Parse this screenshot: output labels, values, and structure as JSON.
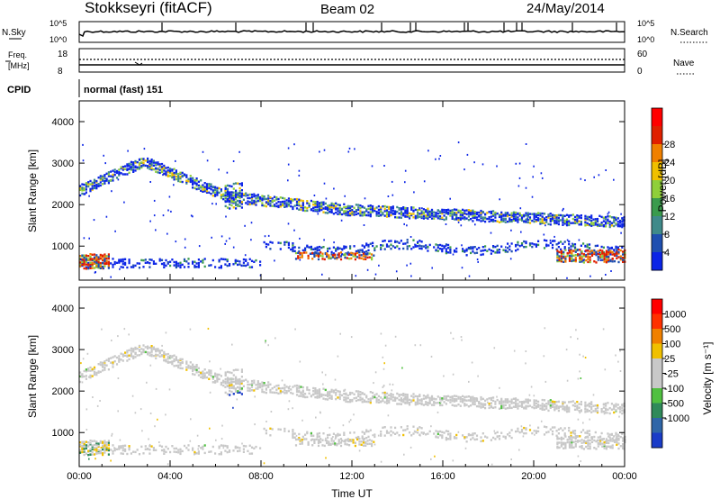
{
  "header": {
    "station": "Stokkseyri (fitACF)",
    "beam": "Beam 02",
    "date": "24/May/2014"
  },
  "left_labels": {
    "nsky": "N.Sky",
    "freq": "Freq.",
    "mhz": "[MHz]",
    "cpid": "CPID"
  },
  "right_labels": {
    "nsearch": "N.Search",
    "nave": "Nave"
  },
  "cpid_text": "normal (fast) 151",
  "chart_data": [
    {
      "type": "line",
      "name": "noise",
      "left_ticks": [
        "10^5",
        "10^0"
      ],
      "right_ticks": [
        "10^5",
        "10^0"
      ]
    },
    {
      "type": "line",
      "name": "freq-nave",
      "left_ticks": [
        "18",
        "8"
      ],
      "right_ticks": [
        "60",
        "0"
      ]
    },
    {
      "type": "heatmap",
      "name": "power",
      "ylabel": "Slant Range [km]",
      "ylim": [
        180,
        4500
      ],
      "yticks": [
        "1000",
        "2000",
        "3000",
        "4000"
      ],
      "colorbar": {
        "label": "Power [dB]",
        "ticks": [
          "4",
          "8",
          "12",
          "16",
          "20",
          "24",
          "28"
        ],
        "colors": [
          "#0b24e6",
          "#1f4fb0",
          "#3f8a8a",
          "#3a9b4d",
          "#8fcf3a",
          "#f0c000",
          "#f08000",
          "#e02000",
          "#ff0000"
        ]
      }
    },
    {
      "type": "heatmap",
      "name": "velocity",
      "ylabel": "Slant Range [km]",
      "ylim": [
        180,
        4500
      ],
      "yticks": [
        "1000",
        "2000",
        "3000",
        "4000"
      ],
      "xlabel": "Time UT",
      "xticks": [
        "00:00",
        "04:00",
        "08:00",
        "12:00",
        "16:00",
        "20:00",
        "00:00"
      ],
      "colorbar": {
        "label": "Velocity [m s⁻¹]",
        "ticks": [
          "1000",
          "500",
          "100",
          "25",
          "-25",
          "-100",
          "-500",
          "-1000"
        ],
        "colors": [
          "#1a3cc8",
          "#2f66a8",
          "#2f8a5a",
          "#50c040",
          "#c8c8c8",
          "#c8c8c8",
          "#f0c000",
          "#f08000",
          "#ff3000",
          "#ff0000"
        ]
      }
    }
  ]
}
